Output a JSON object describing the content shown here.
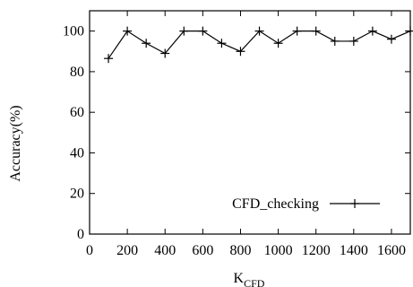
{
  "chart_data": {
    "type": "line",
    "title": "",
    "xlabel": {
      "main": "K",
      "subscript": "CFD"
    },
    "ylabel": "Accuracy(%)",
    "xlim": [
      0,
      1700
    ],
    "ylim": [
      0,
      110
    ],
    "x_ticks": [
      0,
      200,
      400,
      600,
      800,
      1000,
      1200,
      1400,
      1600
    ],
    "x_tick_labels": [
      "0",
      "200",
      "400",
      "600",
      "800",
      "1000",
      "1200",
      "1400",
      "1600"
    ],
    "y_ticks": [
      0,
      20,
      40,
      60,
      80,
      100
    ],
    "y_tick_labels": [
      "0",
      "20",
      "40",
      "60",
      "80",
      "100"
    ],
    "grid": false,
    "legend_position": "bottom-right",
    "series": [
      {
        "name": "CFD_checking",
        "color": "#000000",
        "marker": "plus",
        "x": [
          100,
          200,
          300,
          400,
          500,
          600,
          700,
          800,
          900,
          1000,
          1100,
          1200,
          1300,
          1400,
          1500,
          1600,
          1700
        ],
        "y": [
          86.5,
          100,
          94,
          89,
          100,
          100,
          94,
          90,
          100,
          94,
          100,
          100,
          95,
          95,
          100,
          96,
          100
        ]
      }
    ]
  }
}
